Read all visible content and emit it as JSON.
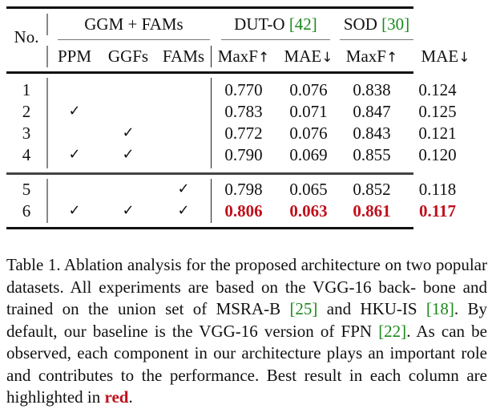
{
  "table": {
    "header": {
      "no_label": "No.",
      "group_ggm": "GGM + FAMs",
      "group_dut": {
        "name": "DUT-O",
        "cite": "[42]"
      },
      "group_sod": {
        "name": "SOD",
        "cite": "[30]"
      },
      "sub": {
        "ppm": "PPM",
        "ggfs": "GGFs",
        "fams": "FAMs",
        "dut_maxf": "MaxF",
        "dut_mae": "MAE",
        "sod_maxf": "MaxF",
        "sod_mae": "MAE",
        "up_arrow": "↑",
        "down_arrow": "↓"
      }
    },
    "check_glyph": "✓",
    "rows": [
      {
        "no": "1",
        "ppm": "",
        "ggfs": "",
        "fams": "",
        "dut_maxf": "0.770",
        "dut_mae": "0.076",
        "sod_maxf": "0.838",
        "sod_mae": "0.124"
      },
      {
        "no": "2",
        "ppm": "✓",
        "ggfs": "",
        "fams": "",
        "dut_maxf": "0.783",
        "dut_mae": "0.071",
        "sod_maxf": "0.847",
        "sod_mae": "0.125"
      },
      {
        "no": "3",
        "ppm": "",
        "ggfs": "✓",
        "fams": "",
        "dut_maxf": "0.772",
        "dut_mae": "0.076",
        "sod_maxf": "0.843",
        "sod_mae": "0.121"
      },
      {
        "no": "4",
        "ppm": "✓",
        "ggfs": "✓",
        "fams": "",
        "dut_maxf": "0.790",
        "dut_mae": "0.069",
        "sod_maxf": "0.855",
        "sod_mae": "0.120"
      },
      {
        "no": "5",
        "ppm": "",
        "ggfs": "",
        "fams": "✓",
        "dut_maxf": "0.798",
        "dut_mae": "0.065",
        "sod_maxf": "0.852",
        "sod_mae": "0.118"
      },
      {
        "no": "6",
        "ppm": "✓",
        "ggfs": "✓",
        "fams": "✓",
        "dut_maxf": "0.806",
        "dut_mae": "0.063",
        "sod_maxf": "0.861",
        "sod_mae": "0.117",
        "best": true
      }
    ],
    "colors": {
      "best": "#c0101c",
      "citation": "#1a8a1a"
    }
  },
  "caption": {
    "p1": "Table 1. Ablation analysis for the proposed architecture on two popular datasets. All experiments are based on the VGG-16 back- bone and trained on the union set of MSRA-B ",
    "cite1": "[25]",
    "p2": " and HKU-IS ",
    "cite2": "[18]",
    "p3": ". By default, our baseline is the VGG-16 version of FPN ",
    "cite3": "[22]",
    "p4": ". As can be observed, each component in our architecture plays an important role and contributes to the performance. Best result in each column are highlighted in ",
    "red_word": "red",
    "p5": "."
  }
}
